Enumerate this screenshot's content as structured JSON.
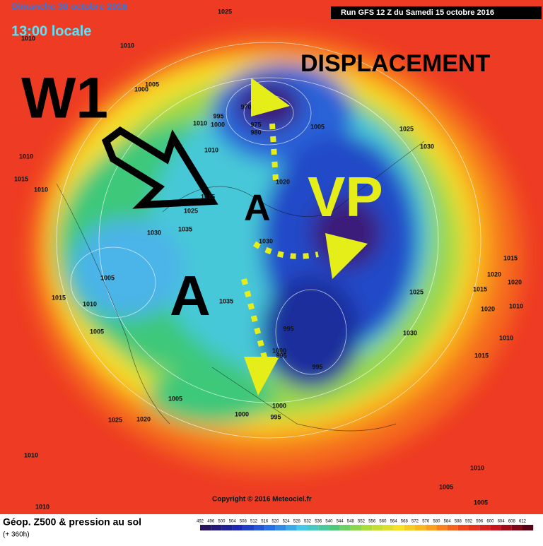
{
  "header": {
    "date": "Dimanche 30 octobre 2016",
    "time": "13:00 locale",
    "run": "Run GFS 12 Z du Samedi 15 octobre 2016"
  },
  "annotations": {
    "wave": "W1",
    "displacement": "DISPLACEMENT",
    "vortex": "VP",
    "anticyclone_north": "A",
    "anticyclone_west": "A"
  },
  "isobar_labels": [
    "1025",
    "1010",
    "1005",
    "1000",
    "1010",
    "1000",
    "995",
    "970",
    "975",
    "980",
    "1005",
    "1025",
    "1030",
    "1010",
    "1010",
    "1015",
    "1010",
    "1020",
    "1015",
    "1025",
    "1030",
    "1035",
    "1030",
    "1005",
    "1025",
    "1015",
    "1020",
    "1020",
    "1015",
    "1010",
    "1020",
    "1015",
    "1010",
    "1035",
    "995",
    "1030",
    "1005",
    "1010",
    "1000",
    "995",
    "995",
    "1015",
    "1005",
    "1000",
    "1000",
    "995",
    "1025",
    "1020",
    "1010",
    "1010",
    "1005",
    "1005",
    "1010",
    "1010"
  ],
  "footer": {
    "title": "Géop. Z500 & pression au sol",
    "lead": "(+ 360h)",
    "copyright": "Copyright © 2016 Meteociel.fr"
  },
  "scale": [
    492,
    496,
    500,
    504,
    508,
    512,
    516,
    520,
    524,
    528,
    532,
    536,
    540,
    544,
    548,
    552,
    556,
    560,
    564,
    568,
    572,
    576,
    580,
    584,
    588,
    592,
    596,
    600,
    604,
    608,
    612
  ]
}
